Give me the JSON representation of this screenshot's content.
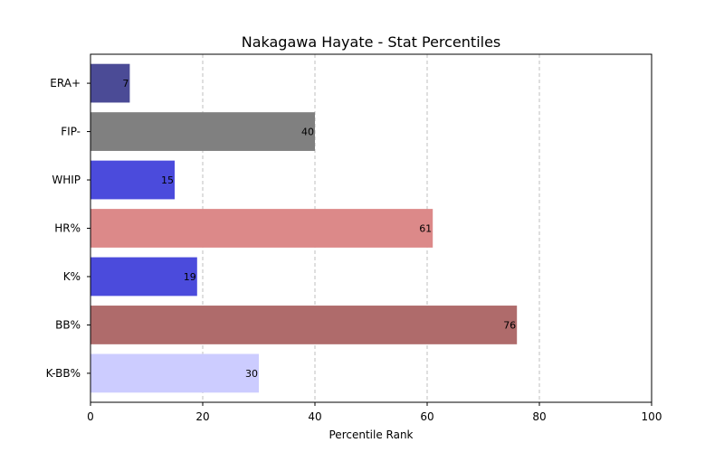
{
  "chart_data": {
    "type": "bar",
    "orientation": "horizontal",
    "title": "Nakagawa Hayate - Stat Percentiles",
    "xlabel": "Percentile Rank",
    "ylabel": "",
    "xlim": [
      0,
      100
    ],
    "xticks": [
      0,
      20,
      40,
      60,
      80,
      100
    ],
    "grid": "x-dashed",
    "categories": [
      "ERA+",
      "FIP-",
      "WHIP",
      "HR%",
      "K%",
      "BB%",
      "K-BB%"
    ],
    "values": [
      7,
      40,
      15,
      61,
      19,
      76,
      30
    ],
    "colors": [
      "#4b4b96",
      "#808080",
      "#4b4bdc",
      "#dc8989",
      "#4b4bdc",
      "#af6b6b",
      "#ccccff"
    ]
  }
}
